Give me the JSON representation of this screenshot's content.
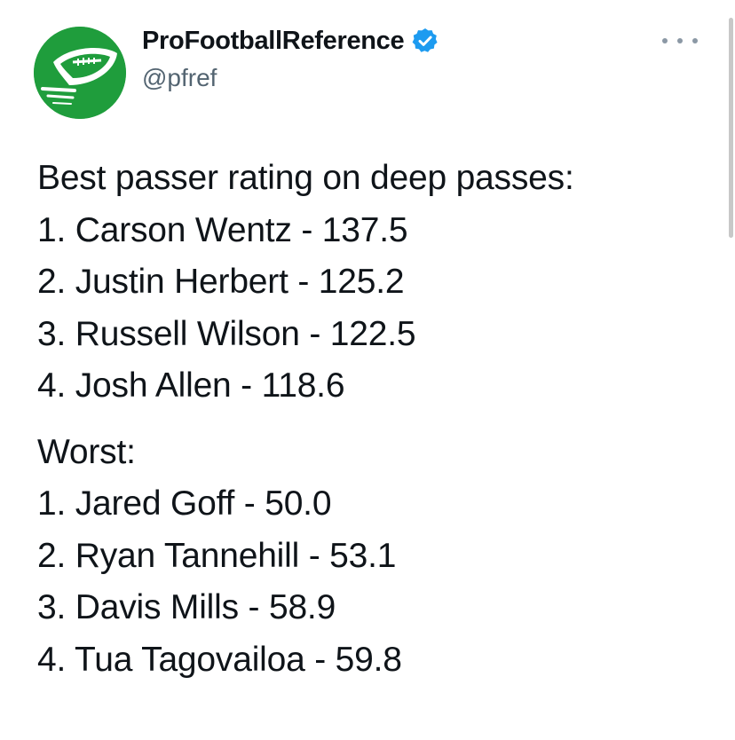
{
  "author": {
    "display_name": "ProFootballReference",
    "handle": "@pfref",
    "avatar_icon": "football-logo-icon",
    "verified_icon": "verified-badge-icon",
    "avatar_color": "#1f9d3c",
    "verified_color": "#1d9bf0"
  },
  "more_menu_icon": "more-options-icon",
  "tweet": {
    "best_heading": "Best passer rating on deep passes:",
    "best": [
      "1. Carson Wentz - 137.5",
      "2. Justin Herbert - 125.2",
      "3. Russell Wilson - 122.5",
      "4. Josh Allen - 118.6"
    ],
    "worst_heading": "Worst:",
    "worst": [
      "1. Jared Goff - 50.0",
      "2. Ryan Tannehill - 53.1",
      "3. Davis Mills - 58.9",
      "4. Tua Tagovailoa - 59.8"
    ]
  }
}
